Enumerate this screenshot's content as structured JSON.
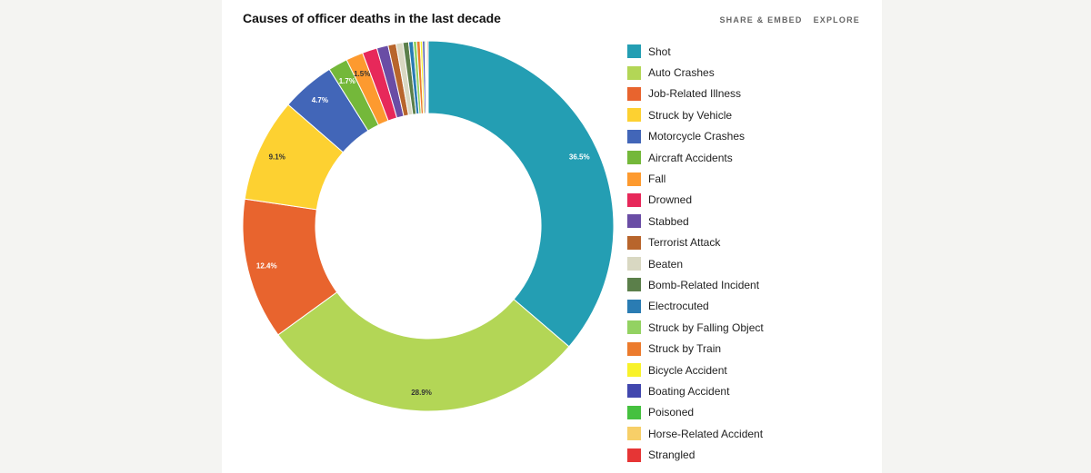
{
  "title": "Causes of officer deaths in the last decade",
  "actions": {
    "share": "SHARE & EMBED",
    "explore": "EXPLORE"
  },
  "chart_data": {
    "type": "pie",
    "donut": true,
    "legend_position": "right",
    "title": "Causes of officer deaths in the last decade",
    "categories": [
      "Shot",
      "Auto Crashes",
      "Job-Related Illness",
      "Struck by Vehicle",
      "Motorcycle Crashes",
      "Aircraft Accidents",
      "Fall",
      "Drowned",
      "Stabbed",
      "Terrorist Attack",
      "Beaten",
      "Bomb-Related Incident",
      "Electrocuted",
      "Struck by Falling Object",
      "Struck by Train",
      "Bicycle Accident",
      "Boating Accident",
      "Poisoned",
      "Horse-Related Accident",
      "Strangled"
    ],
    "values": [
      36.5,
      28.9,
      12.4,
      9.1,
      4.7,
      1.7,
      1.5,
      1.3,
      1.0,
      0.7,
      0.6,
      0.5,
      0.4,
      0.3,
      0.3,
      0.2,
      0.2,
      0.1,
      0.1,
      0.1
    ],
    "colors": [
      "#249eb3",
      "#b3d656",
      "#e8642e",
      "#fdd131",
      "#4266b8",
      "#74b83a",
      "#fd9a2f",
      "#e7285a",
      "#6a4da5",
      "#b8652c",
      "#d9d8c2",
      "#5b7f4a",
      "#2a7cb3",
      "#93d262",
      "#ec7b2d",
      "#f8f22a",
      "#4147ae",
      "#45c13f",
      "#f7cf68",
      "#e63535"
    ],
    "labels": [
      "36.5%",
      "28.9%",
      "12.4%",
      "9.1%",
      "4.7%",
      "1.7%",
      "1.5%"
    ]
  }
}
